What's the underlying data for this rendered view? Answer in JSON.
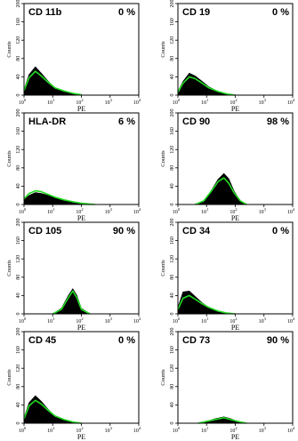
{
  "figure": {
    "background": "#ffffff",
    "colors": {
      "sample": "#000000",
      "isotype_control": "#22dd22",
      "frame": "#000000"
    },
    "panels": [
      {
        "marker": "CD 11b",
        "percent": "0 %"
      },
      {
        "marker": "CD 19",
        "percent": "0 %"
      },
      {
        "marker": "HLA-DR",
        "percent": "6 %"
      },
      {
        "marker": "CD 90",
        "percent": "98 %"
      },
      {
        "marker": "CD 105",
        "percent": "90 %"
      },
      {
        "marker": "CD 34",
        "percent": "0 %"
      },
      {
        "marker": "CD 45",
        "percent": "0 %"
      },
      {
        "marker": "CD 73",
        "percent": "90 %"
      }
    ]
  },
  "chart_data": [
    {
      "type": "area",
      "xscale": "log",
      "xlabel": "PE",
      "ylabel": "Counts",
      "xlim": [
        1,
        10000
      ],
      "ylim": [
        0,
        200
      ],
      "xticks": [
        "10^0",
        "10^1",
        "10^2",
        "10^3",
        "10^4"
      ],
      "yticks": [
        "0",
        "40",
        "80",
        "120",
        "160",
        "200"
      ],
      "annotations": [
        "CD 11b",
        "0 %"
      ],
      "series": [
        {
          "x": [
            1,
            1.5,
            2.5,
            4,
            7,
            12,
            25,
            50,
            100
          ],
          "y": [
            12,
            45,
            62,
            48,
            30,
            16,
            8,
            4,
            1
          ]
        },
        {
          "x": [
            1,
            1.5,
            2.5,
            4,
            7,
            12,
            25,
            50,
            100
          ],
          "y": [
            10,
            38,
            52,
            42,
            28,
            16,
            9,
            4,
            1
          ]
        }
      ]
    },
    {
      "type": "area",
      "xscale": "log",
      "xlabel": "PE",
      "ylabel": "Counts",
      "xlim": [
        1,
        10000
      ],
      "ylim": [
        0,
        200
      ],
      "xticks": [
        "10^0",
        "10^1",
        "10^2",
        "10^3",
        "10^4"
      ],
      "yticks": [
        "0",
        "40",
        "80",
        "120",
        "160",
        "200"
      ],
      "annotations": [
        "CD 19",
        "0 %"
      ],
      "series": [
        {
          "x": [
            1,
            1.5,
            2.5,
            4,
            7,
            12,
            25,
            50,
            100
          ],
          "y": [
            8,
            30,
            48,
            42,
            30,
            18,
            8,
            3,
            0
          ]
        },
        {
          "x": [
            1,
            1.5,
            2.5,
            4,
            7,
            12,
            25,
            50,
            100
          ],
          "y": [
            6,
            26,
            40,
            36,
            26,
            16,
            8,
            3,
            0
          ]
        }
      ]
    },
    {
      "type": "area",
      "xscale": "log",
      "xlabel": "PE",
      "ylabel": "Counts",
      "xlim": [
        1,
        10000
      ],
      "ylim": [
        0,
        200
      ],
      "xticks": [
        "10^0",
        "10^1",
        "10^2",
        "10^3",
        "10^4"
      ],
      "yticks": [
        "0",
        "40",
        "80",
        "120",
        "160",
        "200"
      ],
      "annotations": [
        "HLA-DR",
        "6 %"
      ],
      "series": [
        {
          "x": [
            1,
            1.5,
            2.5,
            4,
            7,
            12,
            25,
            50,
            100,
            300
          ],
          "y": [
            10,
            20,
            26,
            24,
            20,
            15,
            10,
            6,
            3,
            0
          ]
        },
        {
          "x": [
            1,
            1.5,
            2.5,
            4,
            7,
            12,
            25,
            50,
            100,
            300
          ],
          "y": [
            12,
            24,
            30,
            28,
            22,
            16,
            10,
            6,
            3,
            0
          ]
        }
      ]
    },
    {
      "type": "area",
      "xscale": "log",
      "xlabel": "PE",
      "ylabel": "Counts",
      "xlim": [
        1,
        10000
      ],
      "ylim": [
        0,
        200
      ],
      "xticks": [
        "10^0",
        "10^1",
        "10^2",
        "10^3",
        "10^4"
      ],
      "yticks": [
        "0",
        "40",
        "80",
        "120",
        "160",
        "200"
      ],
      "annotations": [
        "CD 90",
        "98 %"
      ],
      "series": [
        {
          "x": [
            4,
            8,
            15,
            25,
            40,
            60,
            90,
            150,
            250
          ],
          "y": [
            0,
            8,
            32,
            55,
            68,
            56,
            30,
            8,
            0
          ]
        },
        {
          "x": [
            4,
            8,
            15,
            25,
            40,
            60,
            90,
            150,
            250
          ],
          "y": [
            0,
            8,
            30,
            50,
            58,
            46,
            26,
            8,
            0
          ]
        }
      ]
    },
    {
      "type": "area",
      "xscale": "log",
      "xlabel": "PE",
      "ylabel": "Counts",
      "xlim": [
        1,
        10000
      ],
      "ylim": [
        0,
        200
      ],
      "xticks": [
        "10^0",
        "10^1",
        "10^2",
        "10^3",
        "10^4"
      ],
      "yticks": [
        "0",
        "40",
        "80",
        "120",
        "160",
        "200"
      ],
      "annotations": [
        "CD 105",
        "90 %"
      ],
      "series": [
        {
          "x": [
            10,
            20,
            35,
            50,
            70,
            100,
            200
          ],
          "y": [
            0,
            12,
            40,
            55,
            40,
            12,
            0
          ]
        },
        {
          "x": [
            10,
            20,
            35,
            50,
            70,
            100,
            200
          ],
          "y": [
            0,
            10,
            35,
            50,
            35,
            10,
            0
          ]
        }
      ]
    },
    {
      "type": "area",
      "xscale": "log",
      "xlabel": "PE",
      "ylabel": "Counts",
      "xlim": [
        1,
        10000
      ],
      "ylim": [
        0,
        200
      ],
      "xticks": [
        "10^0",
        "10^1",
        "10^2",
        "10^3",
        "10^4"
      ],
      "yticks": [
        "0",
        "40",
        "80",
        "120",
        "160",
        "200"
      ],
      "annotations": [
        "CD 34",
        "0 %"
      ],
      "series": [
        {
          "x": [
            1,
            1.5,
            2.5,
            4,
            7,
            12,
            25,
            50,
            100
          ],
          "y": [
            14,
            48,
            50,
            38,
            24,
            14,
            6,
            2,
            0
          ]
        },
        {
          "x": [
            1,
            1.5,
            2.5,
            4,
            7,
            12,
            25,
            50,
            100
          ],
          "y": [
            10,
            34,
            40,
            32,
            22,
            14,
            6,
            2,
            0
          ]
        }
      ]
    },
    {
      "type": "area",
      "xscale": "log",
      "xlabel": "PE",
      "ylabel": "Counts",
      "xlim": [
        1,
        10000
      ],
      "ylim": [
        0,
        200
      ],
      "xticks": [
        "10^0",
        "10^1",
        "10^2",
        "10^3",
        "10^4"
      ],
      "yticks": [
        "0",
        "40",
        "80",
        "120",
        "160",
        "200"
      ],
      "annotations": [
        "CD 45",
        "0 %"
      ],
      "series": [
        {
          "x": [
            1,
            1.5,
            2.5,
            4,
            7,
            12,
            25,
            50,
            100
          ],
          "y": [
            12,
            45,
            60,
            48,
            30,
            16,
            8,
            3,
            0
          ]
        },
        {
          "x": [
            1,
            1.5,
            2.5,
            4,
            7,
            12,
            25,
            50,
            100
          ],
          "y": [
            10,
            38,
            50,
            42,
            28,
            16,
            8,
            3,
            0
          ]
        }
      ]
    },
    {
      "type": "area",
      "xscale": "log",
      "xlabel": "PE",
      "ylabel": "Counts",
      "xlim": [
        1,
        10000
      ],
      "ylim": [
        0,
        200
      ],
      "xticks": [
        "10^0",
        "10^1",
        "10^2",
        "10^3",
        "10^4"
      ],
      "yticks": [
        "0",
        "40",
        "80",
        "120",
        "160",
        "200"
      ],
      "annotations": [
        "CD 73",
        "90 %"
      ],
      "series": [
        {
          "x": [
            5,
            10,
            20,
            40,
            70,
            120,
            250
          ],
          "y": [
            0,
            4,
            10,
            14,
            10,
            4,
            0
          ]
        },
        {
          "x": [
            5,
            10,
            20,
            40,
            70,
            120,
            250
          ],
          "y": [
            0,
            4,
            8,
            12,
            8,
            4,
            0
          ]
        }
      ]
    }
  ]
}
